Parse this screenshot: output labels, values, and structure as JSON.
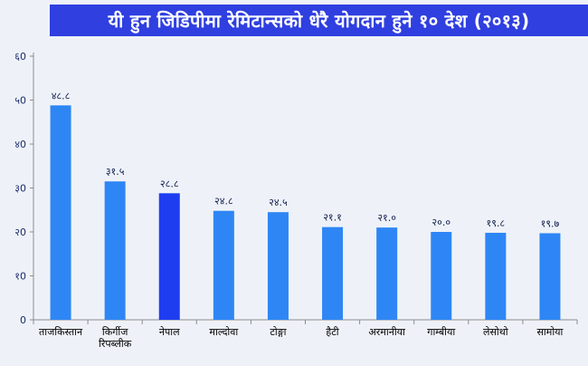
{
  "chart_data": {
    "type": "bar",
    "title": "यी हुन जिडिपीमा रेमिटान्सको धेरै योगदान हुने १० देश (२०१३)",
    "categories": [
      [
        "ताजकिस्तान"
      ],
      [
        "किर्गीज",
        "रिपब्लीक"
      ],
      [
        "नेपाल"
      ],
      [
        "माल्दोवा"
      ],
      [
        "टोङ्गा"
      ],
      [
        "हैटी"
      ],
      [
        "अरमानीया"
      ],
      [
        "गाम्बीया"
      ],
      [
        "लेसोथो"
      ],
      [
        "सामोया"
      ]
    ],
    "values": [
      48.8,
      31.5,
      28.8,
      24.8,
      24.5,
      21.1,
      21.0,
      20.0,
      19.8,
      19.7
    ],
    "value_labels": [
      "४८.८",
      "३१.५",
      "२८.८",
      "२४.८",
      "२४.५",
      "२१.१",
      "२१.०",
      "२०.०",
      "१९.८",
      "१९.७"
    ],
    "highlight_index": 2,
    "ylim": [
      0,
      60
    ],
    "yticks": [
      0,
      10,
      20,
      30,
      40,
      50,
      60
    ],
    "ytick_labels": [
      "0",
      "१0",
      "२0",
      "३0",
      "४0",
      "५0",
      "६0"
    ],
    "grid": false,
    "colors": {
      "bar": "#2e86f5",
      "highlight": "#1e3df0",
      "title_bg": "#2f3fe0"
    }
  }
}
